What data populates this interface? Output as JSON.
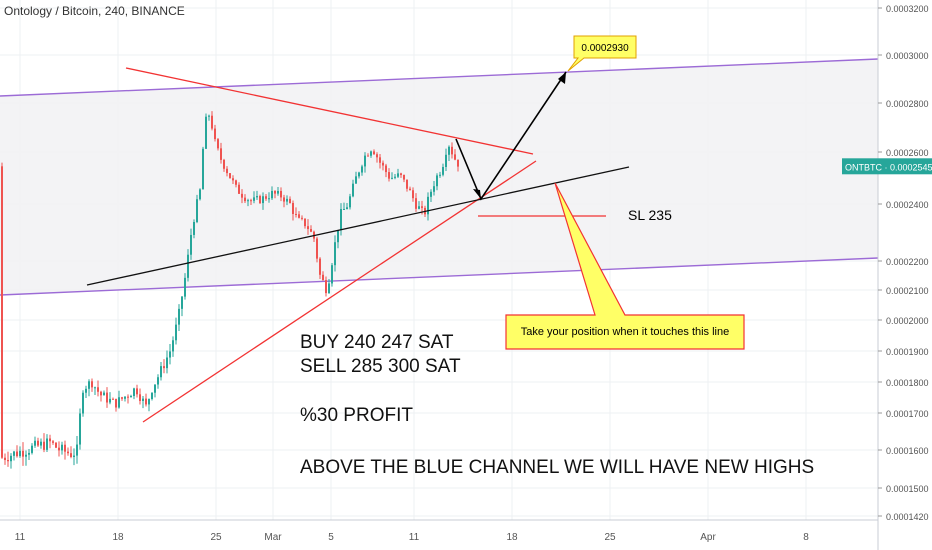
{
  "header": {
    "title": "Ontology / Bitcoin, 240, BINANCE"
  },
  "colors": {
    "up": "#26a69a",
    "down": "#ef5350",
    "channel": "#9c6bd6",
    "trend_red": "#f23333",
    "trend_black": "#111111",
    "price_tag": "#26a69a",
    "callout_bg": "#ffff66",
    "callout_border": "#e0a000"
  },
  "price_tag": {
    "text": "ONTBTC · 0.0002545",
    "value": 0.0002545
  },
  "annotations": {
    "target_label": "0.0002930",
    "sl_label": "SL 235",
    "callout": "Take your position when it touches this line",
    "buy": "BUY  240 247 SAT",
    "sell": "SELL 285 300 SAT",
    "profit": "%30 PROFIT",
    "channel_note": "ABOVE THE BLUE CHANNEL WE WILL HAVE NEW HIGHS"
  },
  "chart_data": {
    "type": "candlestick",
    "title": "Ontology / Bitcoin, 240, BINANCE",
    "y_axis_side": "right",
    "ylim": [
      0.000142,
      0.000322
    ],
    "y_ticks": [
      "0.0003200",
      "0.0003000",
      "0.0002800",
      "0.0002600",
      "0.0002400",
      "0.0002200",
      "0.0002100",
      "0.0002000",
      "0.0001900",
      "0.0001800",
      "0.0001700",
      "0.0001600",
      "0.0001500",
      "0.0001420"
    ],
    "x_ticks": [
      "11",
      "18",
      "25",
      "Mar",
      "5",
      "11",
      "18",
      "25",
      "Apr",
      "8"
    ],
    "grid": true,
    "last_price": 0.0002545,
    "series_summary": {
      "start": 0.000159,
      "low": 0.000155,
      "local_high": 0.000283,
      "end": 0.0002545
    }
  }
}
